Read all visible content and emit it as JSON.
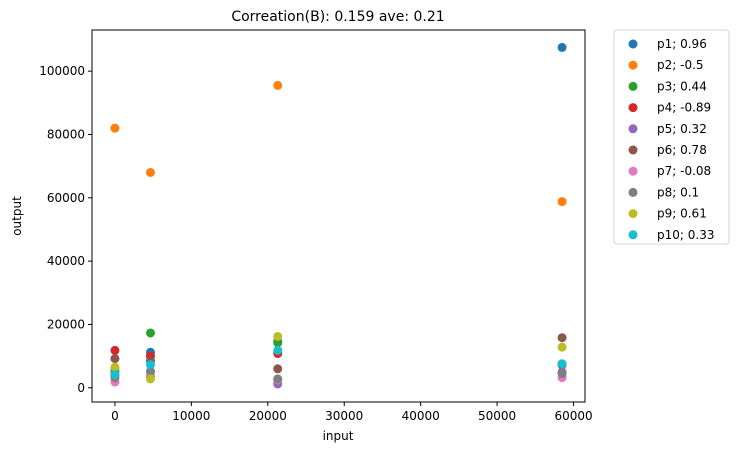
{
  "chart_data": {
    "type": "scatter",
    "title": "Correation(B): 0.159 ave: 0.21",
    "xlabel": "input",
    "ylabel": "output",
    "xlim": [
      -3000,
      61500
    ],
    "ylim": [
      -4500,
      113000
    ],
    "xticks": [
      0,
      10000,
      20000,
      30000,
      40000,
      50000,
      60000
    ],
    "yticks": [
      0,
      20000,
      40000,
      60000,
      80000,
      100000
    ],
    "grid": false,
    "legend_position": "outside-right",
    "x": [
      0,
      4650,
      21300,
      58500
    ],
    "series": [
      {
        "name": "p1; 0.96",
        "color": "#1f77b4",
        "values": [
          5000,
          11200,
          14600,
          107500
        ]
      },
      {
        "name": "p2; -0.5",
        "color": "#ff7f0e",
        "values": [
          82000,
          68000,
          95500,
          58800
        ]
      },
      {
        "name": "p3; 0.44",
        "color": "#2ca02c",
        "values": [
          6000,
          17300,
          14200,
          7200
        ]
      },
      {
        "name": "p4; -0.89",
        "color": "#d62728",
        "values": [
          11800,
          10000,
          10800,
          7500
        ]
      },
      {
        "name": "p5; 0.32",
        "color": "#9467bd",
        "values": [
          4000,
          3500,
          1200,
          5000
        ]
      },
      {
        "name": "p6; 0.78",
        "color": "#8c564b",
        "values": [
          9200,
          8500,
          6000,
          15800
        ]
      },
      {
        "name": "p7; -0.08",
        "color": "#e377c2",
        "values": [
          1800,
          4800,
          2500,
          3200
        ]
      },
      {
        "name": "p8; 0.1",
        "color": "#7f7f7f",
        "values": [
          3200,
          5200,
          2800,
          4500
        ]
      },
      {
        "name": "p9; 0.61",
        "color": "#bcbd22",
        "values": [
          6500,
          2800,
          16200,
          12800
        ]
      },
      {
        "name": "p10; 0.33",
        "color": "#17becf",
        "values": [
          4200,
          7300,
          11800,
          7600
        ]
      }
    ]
  }
}
